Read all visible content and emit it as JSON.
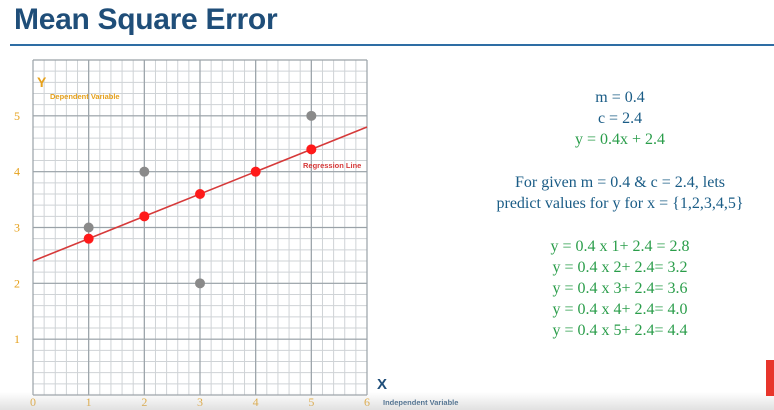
{
  "slide": {
    "title": "Mean Square Error"
  },
  "equations": {
    "m": "m = 0.4",
    "c": "c = 2.4",
    "line": "y = 0.4x + 2.4",
    "desc_line1": "For given m = 0.4 & c = 2.4, lets",
    "desc_line2": "predict values for y for x = {1,2,3,4,5}",
    "predictions": [
      "y = 0.4 x 1+ 2.4 = 2.8",
      "y = 0.4 x 2+ 2.4= 3.2",
      "y = 0.4 x 3+ 2.4= 3.6",
      "y = 0.4 x 4+ 2.4= 4.0",
      "y = 0.4 x 5+ 2.4= 4.4"
    ]
  },
  "colors": {
    "title": "#1f4e79",
    "axis_label": "#e6a11c",
    "tick_label": "#e6a11c",
    "grid_minor": "#cfd3d6",
    "grid_major": "#9aa2a8",
    "regression_line": "#d63a3a",
    "actual_point": "#8a8a8a",
    "predicted_point": "#ff1a1a",
    "axis_text": "#1f4e79"
  },
  "chart_data": {
    "type": "scatter",
    "xlabel_symbol": "X",
    "xlabel": "Independent Variable",
    "ylabel_symbol": "Y",
    "ylabel": "Dependent Variable",
    "line_label": "Regression Line",
    "xlim": [
      0,
      6
    ],
    "ylim": [
      0,
      6
    ],
    "x_ticks": [
      0,
      1,
      2,
      3,
      4,
      5,
      6
    ],
    "y_ticks": [
      1,
      2,
      3,
      4,
      5
    ],
    "regression": {
      "m": 0.4,
      "c": 2.4
    },
    "series": [
      {
        "name": "",
        "kind": "actual",
        "points": [
          [
            1,
            3
          ],
          [
            2,
            4
          ],
          [
            3,
            2
          ],
          [
            5,
            5
          ]
        ]
      },
      {
        "name": "",
        "kind": "predicted",
        "points": [
          [
            1,
            2.8
          ],
          [
            2,
            3.2
          ],
          [
            3,
            3.6
          ],
          [
            4,
            4.0
          ],
          [
            5,
            4.4
          ]
        ]
      }
    ]
  }
}
